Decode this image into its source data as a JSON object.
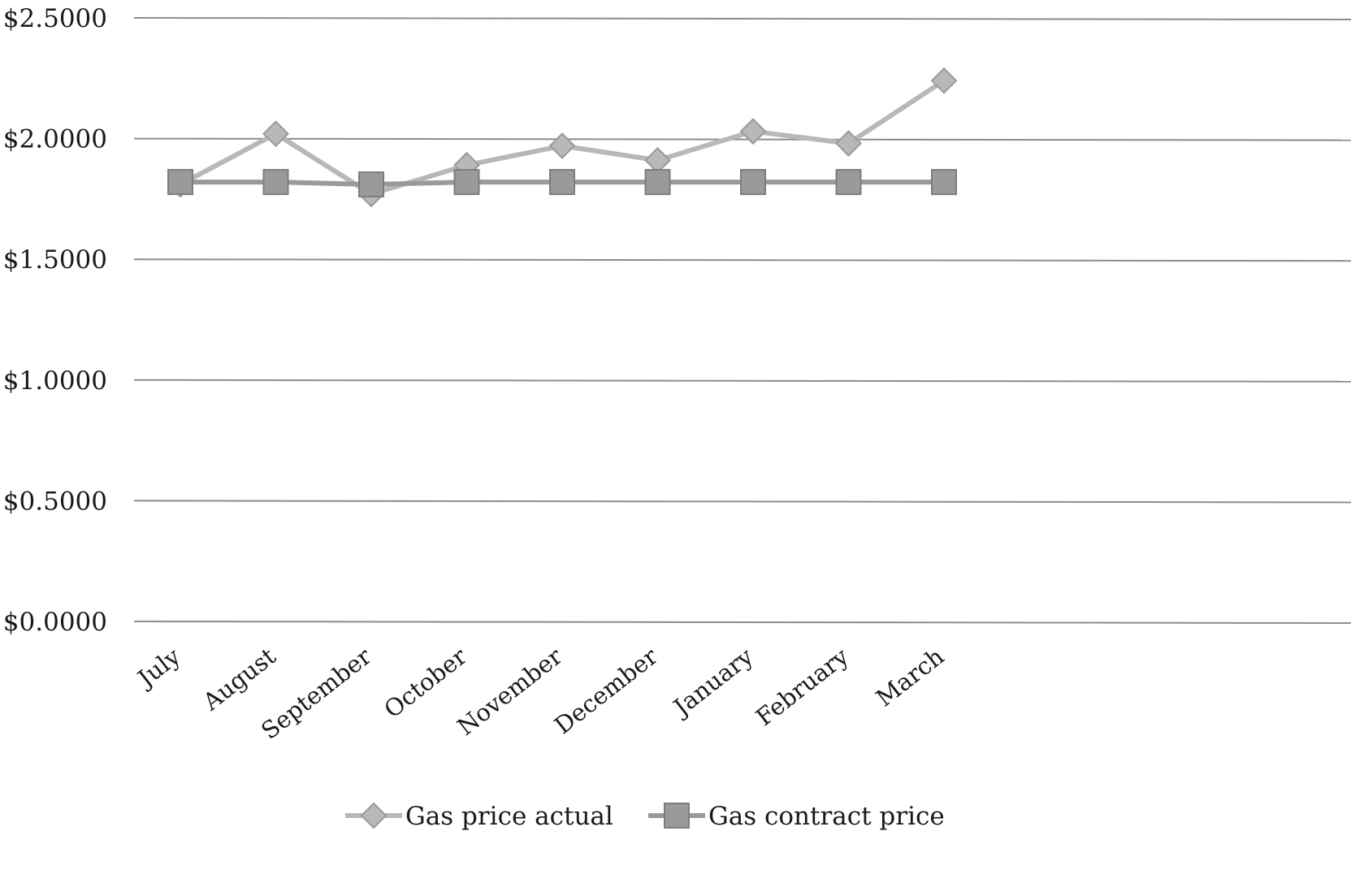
{
  "chart_data": {
    "type": "line",
    "categories": [
      "July",
      "August",
      "September",
      "October",
      "November",
      "December",
      "January",
      "February",
      "March"
    ],
    "y_ticks": [
      "$0.0000",
      "$0.5000",
      "$1.0000",
      "$1.5000",
      "$2.0000",
      "$2.5000"
    ],
    "ylim": [
      0,
      2.5
    ],
    "grid": true,
    "legend_position": "bottom",
    "series": [
      {
        "name": "Gas price actual",
        "marker": "diamond",
        "color": "#b8b8b8",
        "values": [
          1.81,
          2.02,
          1.77,
          1.89,
          1.97,
          1.91,
          2.03,
          1.98,
          2.24
        ]
      },
      {
        "name": "Gas contract price",
        "marker": "square",
        "color": "#9a9a9a",
        "values": [
          1.82,
          1.82,
          1.81,
          1.82,
          1.82,
          1.82,
          1.82,
          1.82,
          1.82
        ]
      }
    ]
  }
}
